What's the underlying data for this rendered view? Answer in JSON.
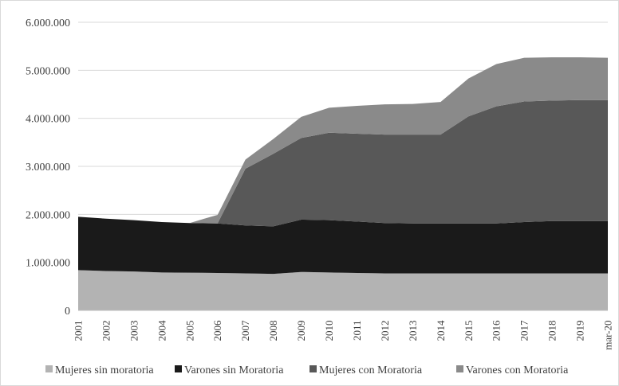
{
  "chart_data": {
    "type": "area",
    "stacked": true,
    "title": "",
    "xlabel": "",
    "ylabel": "",
    "x": [
      "2001",
      "2002",
      "2003",
      "2004",
      "2005",
      "2006",
      "2007",
      "2008",
      "2009",
      "2010",
      "2011",
      "2012",
      "2013",
      "2014",
      "2015",
      "2016",
      "2017",
      "2018",
      "2019",
      "mar-20"
    ],
    "ylim": [
      0,
      6000000
    ],
    "yticks": [
      0,
      1000000,
      2000000,
      3000000,
      4000000,
      5000000,
      6000000
    ],
    "ytick_labels": [
      "0",
      "1.000.000",
      "2.000.000",
      "3.000.000",
      "4.000.000",
      "5.000.000",
      "6.000.000"
    ],
    "grid": "horizontal",
    "legend_position": "bottom",
    "series": [
      {
        "name": "Mujeres sin moratoria",
        "color": "#b3b3b3",
        "values": [
          840000,
          820000,
          810000,
          790000,
          785000,
          780000,
          770000,
          760000,
          800000,
          790000,
          780000,
          770000,
          770000,
          770000,
          770000,
          770000,
          770000,
          770000,
          770000,
          770000
        ]
      },
      {
        "name": "Varones sin Moratoria",
        "color": "#1a1a1a",
        "values": [
          1110000,
          1090000,
          1070000,
          1050000,
          1035000,
          1030000,
          1000000,
          990000,
          1090000,
          1090000,
          1070000,
          1050000,
          1040000,
          1040000,
          1040000,
          1040000,
          1070000,
          1090000,
          1090000,
          1090000
        ]
      },
      {
        "name": "Mujeres con Moratoria",
        "color": "#585858",
        "values": [
          0,
          0,
          0,
          0,
          0,
          0,
          1180000,
          1510000,
          1700000,
          1820000,
          1830000,
          1840000,
          1850000,
          1850000,
          2230000,
          2440000,
          2510000,
          2510000,
          2520000,
          2520000
        ]
      },
      {
        "name": "Varones con Moratoria",
        "color": "#8a8a8a",
        "values": [
          0,
          0,
          0,
          0,
          0,
          180000,
          190000,
          310000,
          440000,
          520000,
          580000,
          630000,
          640000,
          680000,
          790000,
          880000,
          910000,
          900000,
          890000,
          880000
        ]
      }
    ]
  }
}
